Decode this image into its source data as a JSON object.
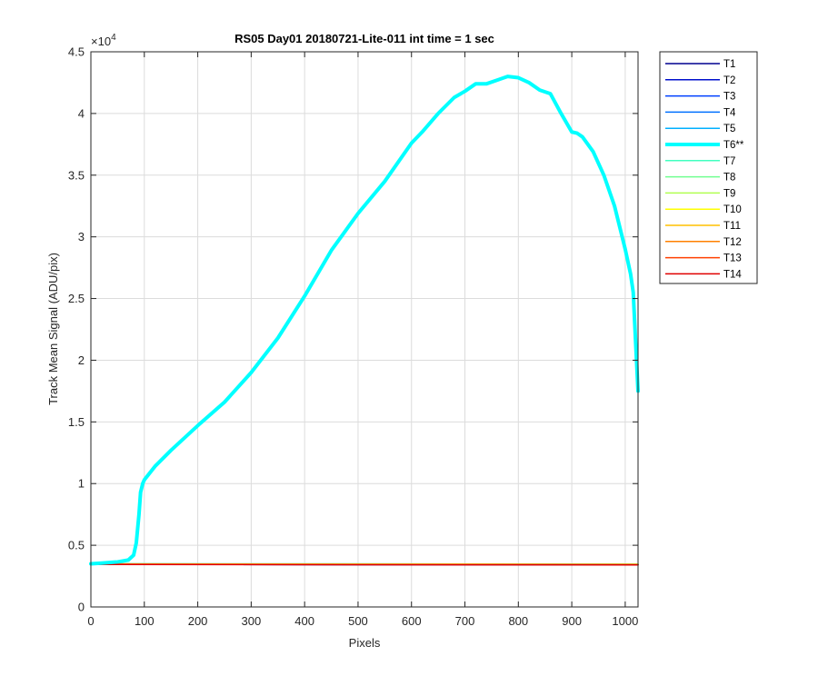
{
  "chart_data": {
    "type": "line",
    "title": "RS05 Day01 20180721-Lite-011 int time = 1 sec",
    "xlabel": "Pixels",
    "ylabel": "Track Mean Signal (ADU/pix)",
    "xlim": [
      0,
      1024
    ],
    "ylim": [
      0,
      45000
    ],
    "x_ticks": [
      0,
      100,
      200,
      300,
      400,
      500,
      600,
      700,
      800,
      900,
      1000
    ],
    "x_tick_labels": [
      "0",
      "100",
      "200",
      "300",
      "400",
      "500",
      "600",
      "700",
      "800",
      "900",
      "1000"
    ],
    "y_ticks": [
      0,
      5000,
      10000,
      15000,
      20000,
      25000,
      30000,
      35000,
      40000,
      45000
    ],
    "y_tick_labels": [
      "0",
      "0.5",
      "1",
      "1.5",
      "2",
      "2.5",
      "3",
      "3.5",
      "4",
      "4.5"
    ],
    "y_exponent_label": "×10",
    "y_exponent_power": "4",
    "grid": true,
    "legend_position": "outside-top-right",
    "series": [
      {
        "name": "T1",
        "color": "#00008f",
        "width": 1.5,
        "x": [
          0,
          1024
        ],
        "y": [
          3450,
          3420
        ]
      },
      {
        "name": "T2",
        "color": "#0010cc",
        "width": 1.5,
        "x": [
          0,
          1024
        ],
        "y": [
          3450,
          3420
        ]
      },
      {
        "name": "T3",
        "color": "#0040ff",
        "width": 1.5,
        "x": [
          0,
          1024
        ],
        "y": [
          3450,
          3420
        ]
      },
      {
        "name": "T4",
        "color": "#0070ff",
        "width": 1.5,
        "x": [
          0,
          1024
        ],
        "y": [
          3450,
          3420
        ]
      },
      {
        "name": "T5",
        "color": "#00b0ff",
        "width": 1.5,
        "x": [
          0,
          1024
        ],
        "y": [
          3460,
          3430
        ]
      },
      {
        "name": "T6**",
        "color": "#00ffff",
        "width": 4,
        "x": [
          0,
          20,
          50,
          70,
          80,
          85,
          90,
          93,
          97,
          100,
          120,
          150,
          200,
          250,
          300,
          350,
          400,
          450,
          500,
          550,
          600,
          620,
          650,
          680,
          700,
          720,
          740,
          760,
          780,
          800,
          820,
          840,
          860,
          880,
          900,
          910,
          920,
          940,
          960,
          980,
          1000,
          1010,
          1015,
          1020,
          1024
        ],
        "y": [
          3500,
          3550,
          3650,
          3800,
          4200,
          5200,
          7500,
          9300,
          10000,
          10300,
          11400,
          12700,
          14700,
          16600,
          19000,
          21800,
          25200,
          28900,
          31900,
          34500,
          37600,
          38500,
          40000,
          41300,
          41800,
          42400,
          42400,
          42700,
          43000,
          42900,
          42500,
          41900,
          41600,
          40000,
          38500,
          38400,
          38100,
          36900,
          35000,
          32500,
          29000,
          27000,
          25500,
          21000,
          17500
        ]
      },
      {
        "name": "T7",
        "color": "#40ffbf",
        "width": 1.5,
        "x": [
          0,
          1024
        ],
        "y": [
          3500,
          3470
        ]
      },
      {
        "name": "T8",
        "color": "#70ff90",
        "width": 1.5,
        "x": [
          0,
          1024
        ],
        "y": [
          3500,
          3470
        ]
      },
      {
        "name": "T9",
        "color": "#b0ff50",
        "width": 1.5,
        "x": [
          0,
          1024
        ],
        "y": [
          3490,
          3460
        ]
      },
      {
        "name": "T10",
        "color": "#ffff00",
        "width": 1.5,
        "x": [
          0,
          1024
        ],
        "y": [
          3480,
          3450
        ]
      },
      {
        "name": "T11",
        "color": "#ffc000",
        "width": 1.5,
        "x": [
          0,
          1024
        ],
        "y": [
          3470,
          3440
        ]
      },
      {
        "name": "T12",
        "color": "#ff8000",
        "width": 1.5,
        "x": [
          0,
          1024
        ],
        "y": [
          3460,
          3430
        ]
      },
      {
        "name": "T13",
        "color": "#ff4000",
        "width": 1.5,
        "x": [
          0,
          1024
        ],
        "y": [
          3450,
          3420
        ]
      },
      {
        "name": "T14",
        "color": "#e00000",
        "width": 1.5,
        "x": [
          0,
          1024
        ],
        "y": [
          3440,
          3410
        ]
      }
    ]
  }
}
